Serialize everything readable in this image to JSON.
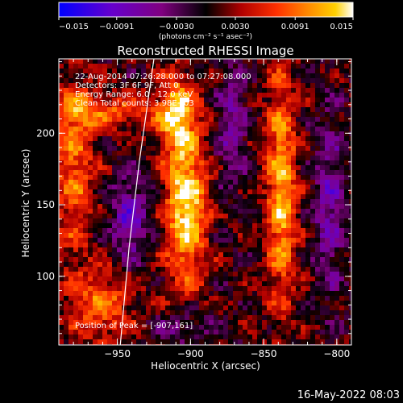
{
  "chart_data": {
    "type": "heatmap",
    "title": "Reconstructed RHESSI Image",
    "xlabel": "Heliocentric X (arcsec)",
    "ylabel": "Heliocentric Y (arcsec)",
    "xlim": [
      -990,
      -790
    ],
    "ylim": [
      52,
      252
    ],
    "x_ticks": [
      -950,
      -900,
      -850,
      -800
    ],
    "x_tick_labels": [
      "−950",
      "−900",
      "−850",
      "−800"
    ],
    "y_ticks": [
      100,
      150,
      200
    ],
    "y_tick_labels": [
      "100",
      "150",
      "200"
    ],
    "colorbar": {
      "min": -0.015,
      "max": 0.015,
      "ticks": [
        -0.015,
        -0.0091,
        -0.003,
        0.003,
        0.0091,
        0.015
      ],
      "tick_labels": [
        "−0.015",
        "−0.0091",
        "−0.0030",
        "0.0030",
        "0.0091",
        "0.015"
      ],
      "unit_label": "(photons cm⁻² s⁻¹ asec⁻²)",
      "colors": [
        "#0000ff",
        "#6600cc",
        "#800080",
        "#000000",
        "#b00000",
        "#ff3000",
        "#ff8c00",
        "#ffd000",
        "#ffffff"
      ]
    },
    "annotations": [
      "22-Aug-2014 07:26:28.000 to 07:27:08.000",
      "Detectors: 3F 6F 9F, Att 0",
      "Energy Range: 6.0 - 12.0 keV",
      "Clean    Total counts: 3.98E+03"
    ],
    "peak_label": "Position of Peak = [-907,161]",
    "peak": {
      "x": -907,
      "y": 161
    },
    "limb_curve": [
      {
        "x": -925,
        "y": 252
      },
      {
        "x": -935,
        "y": 180
      },
      {
        "x": -942,
        "y": 120
      },
      {
        "x": -948,
        "y": 52
      }
    ]
  },
  "footer": {
    "timestamp": "16-May-2022 08:03"
  }
}
